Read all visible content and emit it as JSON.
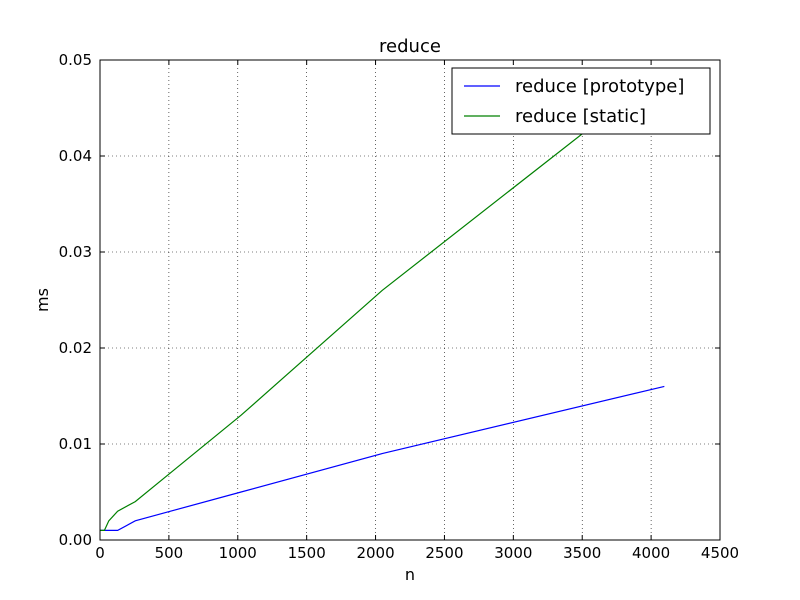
{
  "chart_data": {
    "type": "line",
    "title": "reduce",
    "xlabel": "n",
    "ylabel": "ms",
    "xlim": [
      0,
      4500
    ],
    "ylim": [
      0,
      0.05
    ],
    "xticks": [
      0,
      500,
      1000,
      1500,
      2000,
      2500,
      3000,
      3500,
      4000,
      4500
    ],
    "xtick_labels": [
      "0",
      "500",
      "1000",
      "1500",
      "2000",
      "2500",
      "3000",
      "3500",
      "4000",
      "4500"
    ],
    "yticks": [
      0,
      0.01,
      0.02,
      0.03,
      0.04,
      0.05
    ],
    "ytick_labels": [
      "0.00",
      "0.01",
      "0.02",
      "0.03",
      "0.04",
      "0.05"
    ],
    "grid": true,
    "legend_position": "top-right",
    "series": [
      {
        "name": "reduce [prototype]",
        "color": "#0000ff",
        "x": [
          1,
          2,
          4,
          8,
          16,
          32,
          64,
          128,
          256,
          512,
          1024,
          2048,
          4096
        ],
        "y": [
          0.001,
          0.001,
          0.001,
          0.001,
          0.001,
          0.001,
          0.001,
          0.001,
          0.002,
          0.003,
          0.005,
          0.009,
          0.016
        ]
      },
      {
        "name": "reduce [static]",
        "color": "#008000",
        "x": [
          1,
          2,
          4,
          8,
          16,
          32,
          64,
          128,
          256,
          512,
          1024,
          2048,
          4096
        ],
        "y": [
          0.001,
          0.001,
          0.001,
          0.001,
          0.001,
          0.001,
          0.002,
          0.003,
          0.004,
          0.007,
          0.013,
          0.026,
          0.049
        ]
      }
    ]
  }
}
